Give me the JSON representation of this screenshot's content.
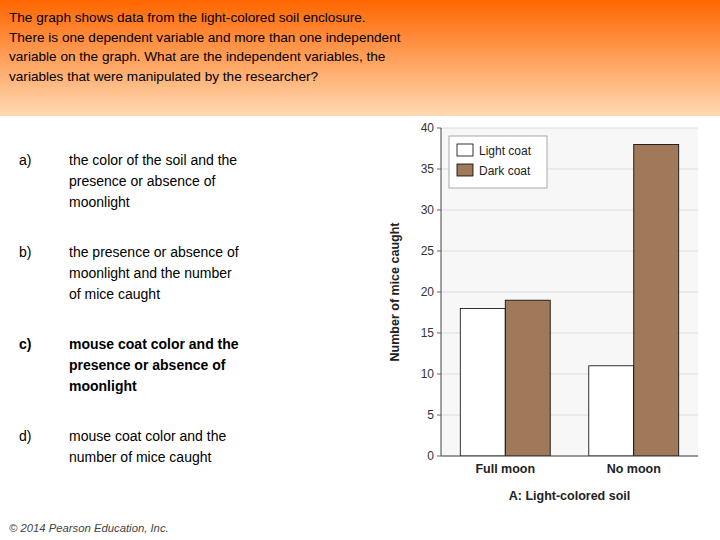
{
  "header": "The graph shows data from the light-colored soil enclosure.\nThere is one dependent variable and more than one independent\nvariable on the graph. What are the independent variables, the\nvariables that were manipulated by the researcher?",
  "options": [
    {
      "label": "a)",
      "text": "the color of the soil and the\npresence or absence of\nmoonlight",
      "bold": false
    },
    {
      "label": "b)",
      "text": "the presence or absence of\nmoonlight and the number\nof mice caught",
      "bold": false
    },
    {
      "label": "c)",
      "text": "mouse coat color and the\npresence or absence of\nmoonlight",
      "bold": true
    },
    {
      "label": "d)",
      "text": "mouse coat color and the\nnumber of mice caught",
      "bold": false
    }
  ],
  "footer": "© 2014 Pearson Education, Inc.",
  "chart_data": {
    "type": "bar",
    "categories": [
      "Full moon",
      "No moon"
    ],
    "xlabel": "A: Light-colored soil",
    "ylabel": "Number of mice caught",
    "series": [
      {
        "name": "Light coat",
        "color": "#FFFFFF",
        "values": [
          18,
          11
        ]
      },
      {
        "name": "Dark coat",
        "color": "#A0785A",
        "values": [
          19,
          38
        ]
      }
    ],
    "ylim": [
      0,
      40
    ],
    "yticks": [
      0,
      5,
      10,
      15,
      20,
      25,
      30,
      35,
      40
    ],
    "grid": true,
    "legend": "upper left"
  }
}
